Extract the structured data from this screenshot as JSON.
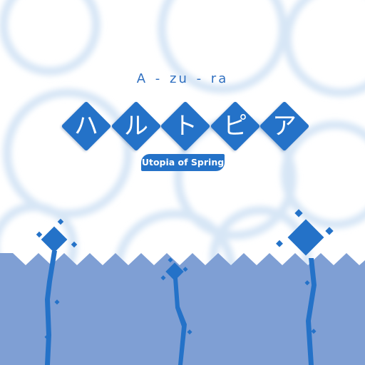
{
  "artist": "A - zu - ra",
  "title_chars": [
    "ハ",
    "ル",
    "ト",
    "ピ",
    "ア"
  ],
  "subtitle": "Utopia of Spring",
  "colors": {
    "accent": "#2472c8",
    "hills": "#7f9fd4",
    "circles": "#d7e6f6",
    "background": "#ffffff"
  }
}
